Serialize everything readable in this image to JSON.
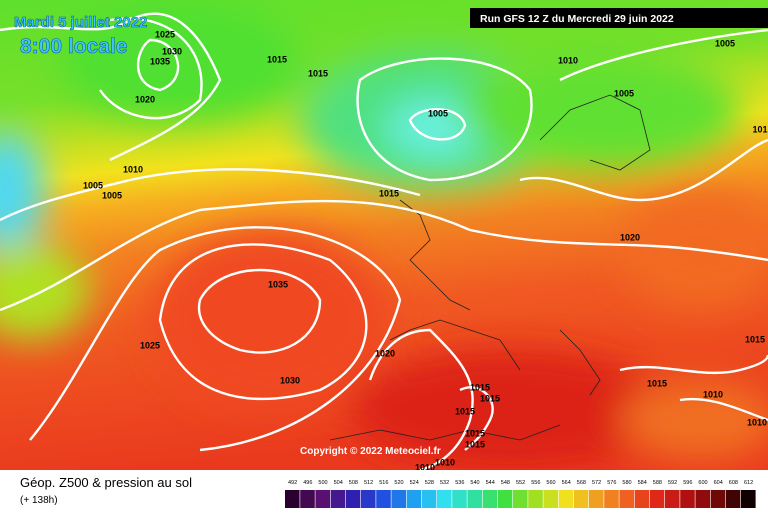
{
  "header": {
    "date": "Mardi 5 juillet 2022",
    "time": "8:00 locale",
    "run": "Run GFS 12 Z du Mercredi 29 juin 2022"
  },
  "isobar_labels": [
    "1025",
    "1030",
    "1035",
    "1015",
    "1015",
    "1020",
    "1010",
    "1005",
    "1005",
    "1005",
    "1010",
    "1005",
    "1005",
    "101",
    "1015",
    "1020",
    "1035",
    "1025",
    "1030",
    "1020",
    "1015",
    "1015",
    "1015",
    "1015",
    "1015",
    "1010",
    "1010",
    "1015",
    "1010",
    "1015",
    "1010"
  ],
  "copyright": "Copyright © 2022 Meteociel.fr",
  "legend": {
    "title": "Géop. Z500 & pression au sol",
    "lead": "(+ 138h)",
    "scale": [
      492,
      496,
      500,
      504,
      508,
      512,
      516,
      520,
      524,
      528,
      532,
      536,
      540,
      544,
      548,
      552,
      556,
      560,
      564,
      568,
      572,
      576,
      580,
      584,
      588,
      592,
      596,
      600,
      604,
      608,
      612
    ]
  }
}
